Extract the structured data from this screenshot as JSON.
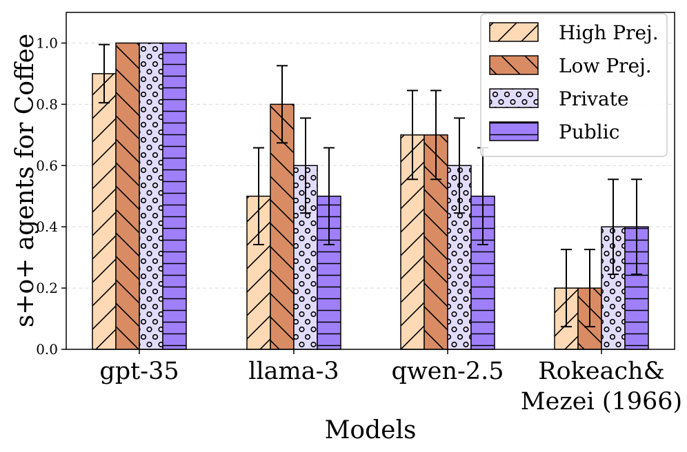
{
  "chart_data": {
    "type": "bar",
    "xlabel": "Models",
    "ylabel": "s+o+ agents for Coffee",
    "ylim": [
      0,
      1.1
    ],
    "yticks": [
      "0.0",
      "0.2",
      "0.4",
      "0.6",
      "0.8",
      "1.0"
    ],
    "grid": "y dashed",
    "legend_position": "top-right",
    "categories": [
      [
        "gpt-35"
      ],
      [
        "llama-3"
      ],
      [
        "qwen-2.5"
      ],
      [
        "Rokeach&",
        "Mezei (1966)"
      ]
    ],
    "series": [
      {
        "name": "High Prej.",
        "color": "#fdd9b5",
        "hatch": "diagonal",
        "values": [
          0.9,
          0.5,
          0.7,
          0.2
        ],
        "errors": [
          0.095,
          0.158,
          0.145,
          0.126
        ]
      },
      {
        "name": "Low Prej.",
        "color": "#d98c64",
        "hatch": "backdiagonal",
        "values": [
          1.0,
          0.8,
          0.7,
          0.2
        ],
        "errors": [
          0,
          0.126,
          0.145,
          0.126
        ]
      },
      {
        "name": "Private",
        "color": "#e2dcfb",
        "hatch": "circles",
        "values": [
          1.0,
          0.6,
          0.6,
          0.4
        ],
        "errors": [
          0,
          0.155,
          0.155,
          0.155
        ]
      },
      {
        "name": "Public",
        "color": "#9f80f9",
        "hatch": "horizontal",
        "values": [
          1.0,
          0.5,
          0.5,
          0.4
        ],
        "errors": [
          0,
          0.158,
          0.158,
          0.155
        ]
      }
    ]
  }
}
